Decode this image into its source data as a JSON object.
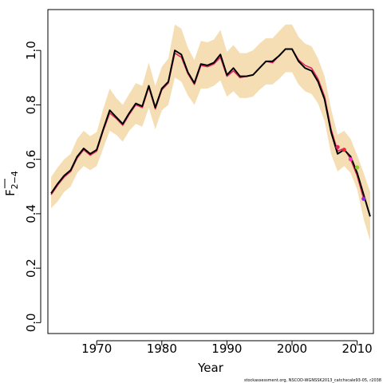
{
  "chart_data": {
    "type": "line",
    "xlabel": "Year",
    "ylabel": {
      "main": "F",
      "sub": "2−4"
    },
    "xlim": [
      1962.5,
      2012.5
    ],
    "ylim": [
      -0.04,
      1.15
    ],
    "x_ticks": [
      1970,
      1980,
      1990,
      2000,
      2010
    ],
    "y_ticks": [
      0.0,
      0.2,
      0.4,
      0.6,
      0.8,
      1.0
    ],
    "footer": "stockassessment.org, NSCOD-WGNSSK2013_catchscale93-05, r2038",
    "colors": {
      "band": "#f5deb3",
      "main_line": "#000000",
      "retro_line": "#e0245a",
      "retro_points": [
        "#e0245a",
        "#ff1f3a",
        "#ff33cc",
        "#8fd12a",
        "#8a2be2"
      ]
    },
    "series": [
      {
        "x": [
          1963,
          1964,
          1965,
          1966,
          1967,
          1968,
          1969,
          1970,
          1971,
          1972,
          1973,
          1974,
          1975,
          1976,
          1977,
          1978,
          1979,
          1980,
          1981,
          1982,
          1983,
          1984,
          1985,
          1986,
          1987,
          1988,
          1989,
          1990,
          1991,
          1992,
          1993,
          1994,
          1995,
          1996,
          1997,
          1998,
          1999,
          2000,
          2001,
          2002,
          2003,
          2004,
          2005,
          2006,
          2007,
          2008,
          2009,
          2010,
          2011,
          2012
        ],
        "y": [
          0.475,
          0.51,
          0.54,
          0.56,
          0.61,
          0.64,
          0.62,
          0.635,
          0.71,
          0.78,
          0.755,
          0.73,
          0.77,
          0.805,
          0.795,
          0.87,
          0.79,
          0.86,
          0.885,
          1.0,
          0.985,
          0.92,
          0.88,
          0.95,
          0.945,
          0.955,
          0.985,
          0.91,
          0.935,
          0.905,
          0.905,
          0.91,
          0.935,
          0.96,
          0.96,
          0.98,
          1.005,
          1.005,
          0.96,
          0.935,
          0.925,
          0.885,
          0.82,
          0.7,
          0.62,
          0.635,
          0.61,
          0.55,
          0.47,
          0.39
        ]
      },
      {
        "x": [
          1963,
          1964,
          1965,
          1966,
          1967,
          1968,
          1969,
          1970,
          1971,
          1972,
          1973,
          1974,
          1975,
          1976,
          1977,
          1978,
          1979,
          1980,
          1981,
          1982,
          1983,
          1984,
          1985,
          1986,
          1987,
          1988,
          1989,
          1990,
          1991,
          1992,
          1993,
          1994,
          1995,
          1996,
          1997,
          1998,
          1999,
          2000,
          2001,
          2002,
          2003,
          2004,
          2005,
          2006,
          2007,
          2008,
          2009,
          2010,
          2011
        ],
        "y": [
          0.47,
          0.505,
          0.535,
          0.555,
          0.605,
          0.635,
          0.615,
          0.63,
          0.705,
          0.77,
          0.75,
          0.725,
          0.765,
          0.8,
          0.79,
          0.865,
          0.785,
          0.855,
          0.88,
          0.99,
          0.975,
          0.915,
          0.875,
          0.945,
          0.94,
          0.95,
          0.975,
          0.905,
          0.925,
          0.9,
          0.905,
          0.91,
          0.935,
          0.96,
          0.955,
          0.98,
          1.005,
          1.005,
          0.965,
          0.945,
          0.935,
          0.895,
          0.83,
          0.71,
          0.63,
          0.64,
          0.6,
          0.54,
          0.455
        ]
      }
    ],
    "band": {
      "x": [
        1963,
        1964,
        1965,
        1966,
        1967,
        1968,
        1969,
        1970,
        1971,
        1972,
        1973,
        1974,
        1975,
        1976,
        1977,
        1978,
        1979,
        1980,
        1981,
        1982,
        1983,
        1984,
        1985,
        1986,
        1987,
        1988,
        1989,
        1990,
        1991,
        1992,
        1993,
        1994,
        1995,
        1996,
        1997,
        1998,
        1999,
        2000,
        2001,
        2002,
        2003,
        2004,
        2005,
        2006,
        2007,
        2008,
        2009,
        2010,
        2011,
        2012
      ],
      "lower": [
        0.42,
        0.445,
        0.48,
        0.5,
        0.55,
        0.575,
        0.56,
        0.575,
        0.64,
        0.705,
        0.69,
        0.665,
        0.705,
        0.73,
        0.72,
        0.79,
        0.71,
        0.78,
        0.8,
        0.9,
        0.885,
        0.835,
        0.8,
        0.86,
        0.86,
        0.87,
        0.89,
        0.83,
        0.85,
        0.825,
        0.825,
        0.83,
        0.855,
        0.875,
        0.875,
        0.895,
        0.92,
        0.92,
        0.875,
        0.85,
        0.84,
        0.805,
        0.74,
        0.62,
        0.555,
        0.575,
        0.55,
        0.49,
        0.38,
        0.3
      ],
      "upper": [
        0.535,
        0.57,
        0.6,
        0.62,
        0.675,
        0.705,
        0.685,
        0.7,
        0.785,
        0.86,
        0.825,
        0.8,
        0.84,
        0.88,
        0.87,
        0.955,
        0.87,
        0.94,
        0.97,
        1.095,
        1.08,
        1.01,
        0.965,
        1.035,
        1.03,
        1.04,
        1.075,
        0.995,
        1.02,
        0.99,
        0.99,
        1.0,
        1.025,
        1.045,
        1.045,
        1.07,
        1.095,
        1.095,
        1.05,
        1.025,
        1.015,
        0.97,
        0.905,
        0.785,
        0.69,
        0.705,
        0.675,
        0.615,
        0.55,
        0.48
      ]
    },
    "retro_points": [
      {
        "x": 2007,
        "y": 0.645
      },
      {
        "x": 2008,
        "y": 0.635
      },
      {
        "x": 2009,
        "y": 0.6
      },
      {
        "x": 2010,
        "y": 0.57
      },
      {
        "x": 2011,
        "y": 0.455
      }
    ]
  }
}
